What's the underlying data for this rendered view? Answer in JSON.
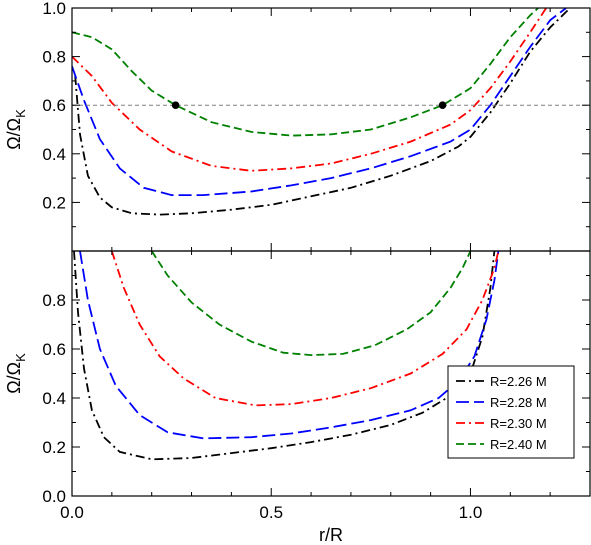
{
  "chart_data": [
    {
      "type": "line",
      "panel": "top",
      "ylabel": "Ω/Ω",
      "ylabel_sub": "K",
      "xlabel": "",
      "xlim": [
        0.0,
        1.3
      ],
      "ylim": [
        0.0,
        1.0
      ],
      "yticks": [
        0.2,
        0.4,
        0.6,
        0.8,
        1.0
      ],
      "ytick_labels": [
        "0.2",
        "0.4",
        "0.6",
        "0.8",
        "1.0"
      ],
      "xticks": [
        0.0,
        0.5,
        1.0
      ],
      "reference_line": {
        "y": 0.6,
        "style": "dashed",
        "color": "#808080"
      },
      "markers": [
        {
          "x": 0.26,
          "y": 0.6
        },
        {
          "x": 0.93,
          "y": 0.6
        }
      ],
      "series": [
        {
          "key": "r226",
          "color": "#000000",
          "dash": "dashdot",
          "points": [
            [
              0.008,
              0.72
            ],
            [
              0.02,
              0.48
            ],
            [
              0.04,
              0.31
            ],
            [
              0.07,
              0.22
            ],
            [
              0.1,
              0.18
            ],
            [
              0.15,
              0.155
            ],
            [
              0.22,
              0.15
            ],
            [
              0.3,
              0.155
            ],
            [
              0.4,
              0.17
            ],
            [
              0.5,
              0.19
            ],
            [
              0.6,
              0.225
            ],
            [
              0.7,
              0.26
            ],
            [
              0.8,
              0.31
            ],
            [
              0.9,
              0.37
            ],
            [
              0.97,
              0.43
            ],
            [
              1.0,
              0.47
            ],
            [
              1.05,
              0.57
            ],
            [
              1.1,
              0.69
            ],
            [
              1.15,
              0.82
            ],
            [
              1.2,
              0.92
            ],
            [
              1.25,
              1.0
            ]
          ]
        },
        {
          "key": "r228",
          "color": "#0000ff",
          "dash": "longdash",
          "points": [
            [
              0.0,
              0.76
            ],
            [
              0.03,
              0.62
            ],
            [
              0.07,
              0.46
            ],
            [
              0.12,
              0.34
            ],
            [
              0.18,
              0.26
            ],
            [
              0.25,
              0.23
            ],
            [
              0.33,
              0.23
            ],
            [
              0.45,
              0.245
            ],
            [
              0.55,
              0.27
            ],
            [
              0.65,
              0.3
            ],
            [
              0.75,
              0.34
            ],
            [
              0.85,
              0.39
            ],
            [
              0.95,
              0.45
            ],
            [
              1.0,
              0.5
            ],
            [
              1.05,
              0.6
            ],
            [
              1.1,
              0.72
            ],
            [
              1.15,
              0.84
            ],
            [
              1.2,
              0.95
            ],
            [
              1.24,
              1.0
            ]
          ]
        },
        {
          "key": "r230",
          "color": "#ff0000",
          "dash": "dashdot",
          "points": [
            [
              0.0,
              0.8
            ],
            [
              0.05,
              0.72
            ],
            [
              0.1,
              0.61
            ],
            [
              0.17,
              0.5
            ],
            [
              0.25,
              0.41
            ],
            [
              0.35,
              0.35
            ],
            [
              0.45,
              0.33
            ],
            [
              0.55,
              0.34
            ],
            [
              0.65,
              0.36
            ],
            [
              0.75,
              0.4
            ],
            [
              0.85,
              0.45
            ],
            [
              0.95,
              0.52
            ],
            [
              1.0,
              0.58
            ],
            [
              1.05,
              0.67
            ],
            [
              1.1,
              0.78
            ],
            [
              1.15,
              0.9
            ],
            [
              1.19,
              1.0
            ]
          ]
        },
        {
          "key": "r240",
          "color": "#008000",
          "dash": "dashed",
          "points": [
            [
              0.0,
              0.9
            ],
            [
              0.05,
              0.88
            ],
            [
              0.1,
              0.83
            ],
            [
              0.15,
              0.74
            ],
            [
              0.2,
              0.66
            ],
            [
              0.26,
              0.6
            ],
            [
              0.35,
              0.53
            ],
            [
              0.45,
              0.49
            ],
            [
              0.55,
              0.475
            ],
            [
              0.65,
              0.48
            ],
            [
              0.75,
              0.5
            ],
            [
              0.85,
              0.55
            ],
            [
              0.93,
              0.6
            ],
            [
              1.0,
              0.67
            ],
            [
              1.05,
              0.77
            ],
            [
              1.1,
              0.88
            ],
            [
              1.15,
              0.97
            ],
            [
              1.17,
              1.0
            ]
          ]
        }
      ]
    },
    {
      "type": "line",
      "panel": "bottom",
      "ylabel": "Ω/Ω",
      "ylabel_sub": "K",
      "xlabel": "r/R",
      "xlim": [
        0.0,
        1.3
      ],
      "ylim": [
        0.0,
        1.0
      ],
      "yticks": [
        0.0,
        0.2,
        0.4,
        0.6,
        0.8
      ],
      "ytick_labels": [
        "0.0",
        "0.2",
        "0.4",
        "0.6",
        "0.8"
      ],
      "xticks": [
        0.0,
        0.5,
        1.0
      ],
      "xtick_labels": [
        "0.0",
        "0.5",
        "1.0"
      ],
      "legend": {
        "position": "lower-right",
        "entries": [
          {
            "label": "R=2.26 M",
            "color": "#000000",
            "dash": "dashdot"
          },
          {
            "label": "R=2.28 M",
            "color": "#0000ff",
            "dash": "longdash"
          },
          {
            "label": "R=2.30 M",
            "color": "#ff0000",
            "dash": "dashdot"
          },
          {
            "label": "R=2.40 M",
            "color": "#008000",
            "dash": "dashed"
          }
        ]
      },
      "series": [
        {
          "key": "r226",
          "color": "#000000",
          "dash": "dashdot",
          "points": [
            [
              0.005,
              1.0
            ],
            [
              0.015,
              0.75
            ],
            [
              0.03,
              0.52
            ],
            [
              0.05,
              0.35
            ],
            [
              0.08,
              0.24
            ],
            [
              0.12,
              0.18
            ],
            [
              0.2,
              0.15
            ],
            [
              0.3,
              0.155
            ],
            [
              0.4,
              0.175
            ],
            [
              0.5,
              0.195
            ],
            [
              0.6,
              0.22
            ],
            [
              0.7,
              0.25
            ],
            [
              0.8,
              0.29
            ],
            [
              0.88,
              0.34
            ],
            [
              0.95,
              0.41
            ],
            [
              1.0,
              0.5
            ],
            [
              1.03,
              0.65
            ],
            [
              1.05,
              0.85
            ],
            [
              1.06,
              1.0
            ]
          ]
        },
        {
          "key": "r228",
          "color": "#0000ff",
          "dash": "longdash",
          "points": [
            [
              0.02,
              1.0
            ],
            [
              0.04,
              0.8
            ],
            [
              0.07,
              0.6
            ],
            [
              0.11,
              0.45
            ],
            [
              0.17,
              0.33
            ],
            [
              0.24,
              0.26
            ],
            [
              0.33,
              0.235
            ],
            [
              0.45,
              0.24
            ],
            [
              0.55,
              0.255
            ],
            [
              0.65,
              0.28
            ],
            [
              0.75,
              0.31
            ],
            [
              0.85,
              0.35
            ],
            [
              0.92,
              0.4
            ],
            [
              0.97,
              0.47
            ],
            [
              1.01,
              0.57
            ],
            [
              1.04,
              0.72
            ],
            [
              1.06,
              0.88
            ],
            [
              1.07,
              1.0
            ]
          ]
        },
        {
          "key": "r230",
          "color": "#ff0000",
          "dash": "dashdot",
          "points": [
            [
              0.1,
              1.0
            ],
            [
              0.13,
              0.85
            ],
            [
              0.17,
              0.7
            ],
            [
              0.22,
              0.57
            ],
            [
              0.28,
              0.48
            ],
            [
              0.36,
              0.4
            ],
            [
              0.46,
              0.37
            ],
            [
              0.55,
              0.375
            ],
            [
              0.65,
              0.4
            ],
            [
              0.75,
              0.44
            ],
            [
              0.85,
              0.5
            ],
            [
              0.93,
              0.58
            ],
            [
              0.99,
              0.68
            ],
            [
              1.03,
              0.8
            ],
            [
              1.06,
              0.93
            ],
            [
              1.07,
              1.0
            ]
          ]
        },
        {
          "key": "r240",
          "color": "#008000",
          "dash": "dashed",
          "points": [
            [
              0.2,
              1.0
            ],
            [
              0.24,
              0.9
            ],
            [
              0.3,
              0.79
            ],
            [
              0.37,
              0.7
            ],
            [
              0.45,
              0.63
            ],
            [
              0.53,
              0.585
            ],
            [
              0.6,
              0.575
            ],
            [
              0.68,
              0.58
            ],
            [
              0.76,
              0.615
            ],
            [
              0.84,
              0.68
            ],
            [
              0.9,
              0.75
            ],
            [
              0.95,
              0.85
            ],
            [
              0.98,
              0.93
            ],
            [
              1.0,
              1.0
            ]
          ]
        }
      ]
    }
  ]
}
